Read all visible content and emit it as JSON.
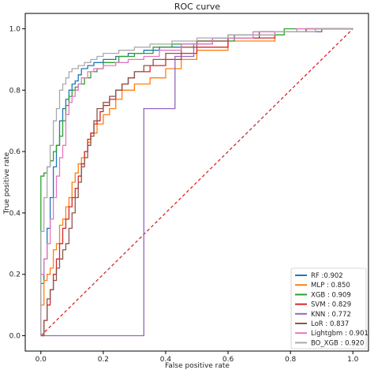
{
  "chart_data": {
    "type": "line",
    "title": "ROC curve",
    "xlabel": "False positive rate",
    "ylabel": "True positive rate",
    "xlim": [
      -0.05,
      1.05
    ],
    "ylim": [
      -0.05,
      1.05
    ],
    "xticks": [
      0.0,
      0.2,
      0.4,
      0.6,
      0.8,
      1.0
    ],
    "yticks": [
      0.0,
      0.2,
      0.4,
      0.6,
      0.8,
      1.0
    ],
    "xtick_labels": [
      "0.0",
      "0.2",
      "0.4",
      "0.6",
      "0.8",
      "1.0"
    ],
    "ytick_labels": [
      "0.0",
      "0.2",
      "0.4",
      "0.6",
      "0.8",
      "1.0"
    ],
    "grid": false,
    "legend_position": "lower-right",
    "diagonal": {
      "x": [
        0,
        1
      ],
      "y": [
        0,
        1
      ],
      "color": "#d62728",
      "style": "dashed"
    },
    "series": [
      {
        "name": "RF",
        "label": "RF :0.902",
        "color": "#1f77b4",
        "x": [
          0.0,
          0.0,
          0.01,
          0.01,
          0.02,
          0.03,
          0.04,
          0.05,
          0.06,
          0.07,
          0.08,
          0.09,
          0.1,
          0.11,
          0.12,
          0.13,
          0.15,
          0.17,
          0.2,
          0.24,
          0.28,
          0.33,
          0.38,
          0.45,
          0.55,
          0.7,
          0.85,
          1.0
        ],
        "y": [
          0.0,
          0.17,
          0.18,
          0.25,
          0.35,
          0.45,
          0.55,
          0.62,
          0.7,
          0.74,
          0.77,
          0.8,
          0.82,
          0.83,
          0.85,
          0.87,
          0.88,
          0.89,
          0.9,
          0.91,
          0.92,
          0.93,
          0.94,
          0.95,
          0.97,
          0.99,
          1.0,
          1.0
        ]
      },
      {
        "name": "MLP",
        "label": "MLP : 0.850",
        "color": "#ff7f0e",
        "x": [
          0.0,
          0.0,
          0.01,
          0.02,
          0.03,
          0.04,
          0.05,
          0.06,
          0.07,
          0.08,
          0.09,
          0.1,
          0.11,
          0.12,
          0.13,
          0.14,
          0.15,
          0.16,
          0.18,
          0.2,
          0.22,
          0.24,
          0.26,
          0.3,
          0.35,
          0.4,
          0.45,
          0.5,
          0.6,
          0.75,
          0.88,
          1.0
        ],
        "y": [
          0.0,
          0.1,
          0.18,
          0.2,
          0.22,
          0.28,
          0.3,
          0.36,
          0.38,
          0.42,
          0.45,
          0.5,
          0.53,
          0.56,
          0.58,
          0.6,
          0.63,
          0.66,
          0.69,
          0.72,
          0.74,
          0.77,
          0.8,
          0.82,
          0.84,
          0.87,
          0.9,
          0.93,
          0.96,
          0.99,
          1.0,
          1.0
        ]
      },
      {
        "name": "XGB",
        "label": "XGB : 0.909",
        "color": "#2ca02c",
        "x": [
          0.0,
          0.0,
          0.0,
          0.01,
          0.02,
          0.03,
          0.04,
          0.05,
          0.06,
          0.07,
          0.08,
          0.09,
          0.1,
          0.11,
          0.12,
          0.14,
          0.16,
          0.18,
          0.2,
          0.25,
          0.3,
          0.36,
          0.42,
          0.5,
          0.62,
          0.78,
          1.0
        ],
        "y": [
          0.0,
          0.4,
          0.52,
          0.53,
          0.55,
          0.57,
          0.6,
          0.62,
          0.65,
          0.7,
          0.75,
          0.78,
          0.8,
          0.81,
          0.82,
          0.84,
          0.86,
          0.87,
          0.89,
          0.91,
          0.92,
          0.94,
          0.95,
          0.96,
          0.98,
          1.0,
          1.0
        ]
      },
      {
        "name": "SVM",
        "label": "SVM : 0.829",
        "color": "#d62728",
        "x": [
          0.0,
          0.01,
          0.02,
          0.03,
          0.04,
          0.05,
          0.06,
          0.07,
          0.08,
          0.09,
          0.1,
          0.11,
          0.12,
          0.13,
          0.14,
          0.15,
          0.16,
          0.17,
          0.18,
          0.19,
          0.2,
          0.22,
          0.24,
          0.26,
          0.28,
          0.3,
          0.35,
          0.4,
          0.45,
          0.5,
          0.6,
          0.75,
          0.9,
          1.0
        ],
        "y": [
          0.0,
          0.05,
          0.1,
          0.15,
          0.2,
          0.25,
          0.3,
          0.35,
          0.38,
          0.42,
          0.45,
          0.48,
          0.52,
          0.56,
          0.6,
          0.64,
          0.66,
          0.69,
          0.7,
          0.73,
          0.75,
          0.77,
          0.8,
          0.82,
          0.84,
          0.86,
          0.88,
          0.9,
          0.92,
          0.94,
          0.97,
          0.99,
          1.0,
          1.0
        ]
      },
      {
        "name": "KNN",
        "label": "KNN : 0.772",
        "color": "#9467bd",
        "x": [
          0.0,
          0.33,
          0.43,
          0.49,
          0.55,
          0.62,
          0.75,
          0.9,
          1.0
        ],
        "y": [
          0.0,
          0.74,
          0.91,
          0.95,
          0.97,
          0.98,
          0.99,
          1.0,
          1.0
        ]
      },
      {
        "name": "LoR",
        "label": "LoR : 0.837",
        "color": "#8c564b",
        "x": [
          0.0,
          0.01,
          0.02,
          0.03,
          0.04,
          0.05,
          0.06,
          0.07,
          0.08,
          0.09,
          0.1,
          0.11,
          0.12,
          0.13,
          0.14,
          0.15,
          0.16,
          0.17,
          0.18,
          0.2,
          0.22,
          0.24,
          0.26,
          0.28,
          0.3,
          0.33,
          0.36,
          0.4,
          0.45,
          0.5,
          0.6,
          0.7,
          0.85,
          1.0
        ],
        "y": [
          0.0,
          0.05,
          0.12,
          0.15,
          0.18,
          0.22,
          0.25,
          0.28,
          0.3,
          0.35,
          0.4,
          0.45,
          0.5,
          0.55,
          0.58,
          0.62,
          0.65,
          0.7,
          0.74,
          0.76,
          0.78,
          0.8,
          0.82,
          0.84,
          0.86,
          0.88,
          0.9,
          0.92,
          0.94,
          0.96,
          0.98,
          0.99,
          1.0,
          1.0
        ]
      },
      {
        "name": "Lightgbm",
        "label": "Lightgbm : 0.901",
        "color": "#e377c2",
        "x": [
          0.0,
          0.0,
          0.01,
          0.02,
          0.03,
          0.04,
          0.05,
          0.06,
          0.07,
          0.08,
          0.09,
          0.1,
          0.11,
          0.12,
          0.13,
          0.15,
          0.17,
          0.2,
          0.24,
          0.28,
          0.33,
          0.38,
          0.45,
          0.55,
          0.68,
          0.82,
          1.0
        ],
        "y": [
          0.0,
          0.2,
          0.25,
          0.3,
          0.38,
          0.45,
          0.52,
          0.58,
          0.62,
          0.72,
          0.76,
          0.78,
          0.8,
          0.82,
          0.84,
          0.86,
          0.87,
          0.88,
          0.89,
          0.9,
          0.91,
          0.93,
          0.95,
          0.97,
          0.99,
          1.0,
          1.0
        ]
      },
      {
        "name": "BO_XGB",
        "label": "BO_XGB : 0.920",
        "color": "#aaaaaa",
        "x": [
          0.0,
          0.0,
          0.0,
          0.01,
          0.02,
          0.03,
          0.04,
          0.05,
          0.06,
          0.07,
          0.08,
          0.09,
          0.1,
          0.12,
          0.14,
          0.16,
          0.18,
          0.2,
          0.25,
          0.3,
          0.35,
          0.42,
          0.5,
          0.6,
          0.75,
          0.88,
          1.0
        ],
        "y": [
          0.0,
          0.3,
          0.34,
          0.45,
          0.55,
          0.62,
          0.7,
          0.74,
          0.8,
          0.82,
          0.84,
          0.86,
          0.87,
          0.88,
          0.89,
          0.9,
          0.91,
          0.92,
          0.93,
          0.94,
          0.95,
          0.96,
          0.97,
          0.98,
          0.99,
          1.0,
          1.0
        ]
      }
    ]
  }
}
